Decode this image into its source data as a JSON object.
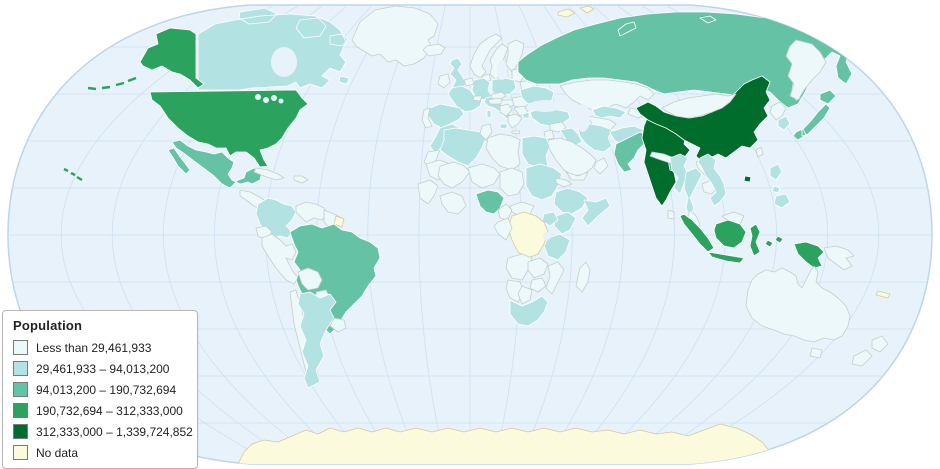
{
  "legend": {
    "title": "Population",
    "items": [
      {
        "label": "Less than 29,461,933",
        "class": "c0"
      },
      {
        "label": "29,461,933 – 94,013,200",
        "class": "c1"
      },
      {
        "label": "94,013,200 – 190,732,694",
        "class": "c2"
      },
      {
        "label": "190,732,694 – 312,333,000",
        "class": "c3"
      },
      {
        "label": "312,333,000 – 1,339,724,852",
        "class": "c4"
      },
      {
        "label": "No data",
        "class": "nodata"
      }
    ]
  },
  "map": {
    "projection": "robinson-world",
    "palette": {
      "c0": "#edf8fb",
      "c1": "#b2e2e2",
      "c2": "#66c2a4",
      "c3": "#2ca25f",
      "c4": "#006d2c",
      "nodata": "#fcfadc",
      "ocean": "#e8f2fa",
      "graticule": "#cde0f2",
      "oceanEdge": "#bdd5ea",
      "lake": "#e8f2fa"
    },
    "strokes": {
      "c0": "#c3cfcb",
      "c1": "#ffffff",
      "c2": "#ffffff",
      "c3": "#ffffff",
      "c4": "#ffffff",
      "nodata": "#d2cba0"
    },
    "countries": {
      "alaska": "c3",
      "aleutian-islands": "c3",
      "hawaii": "c3",
      "united-states": "c3",
      "canada": "c1",
      "greenland": "c0",
      "iceland": "c0",
      "mexico": "c2",
      "central-america": "c0",
      "cuba": "c0",
      "hispaniola": "c0",
      "colombia": "c1",
      "venezuela": "c0",
      "guyanas": "c0",
      "french-guiana": "nodata",
      "ecuador": "c0",
      "peru": "c0",
      "brazil": "c2",
      "bolivia": "c0",
      "paraguay": "c0",
      "chile": "c0",
      "argentina": "c1",
      "uruguay": "c0",
      "united-kingdom": "c1",
      "ireland": "c0",
      "norway": "c0",
      "sweden": "c0",
      "finland": "c0",
      "denmark": "c0",
      "baltic-states": "c0",
      "belarus": "c0",
      "poland": "c1",
      "germany": "c1",
      "netherlands": "c0",
      "france": "c1",
      "spain": "c1",
      "portugal": "c0",
      "italy": "c1",
      "switzerland": "c0",
      "czechia": "c0",
      "austria": "c0",
      "hungary": "c0",
      "romania": "c0",
      "serbia-balkans": "c0",
      "bulgaria": "c0",
      "greece": "c0",
      "ukraine": "c1",
      "turkey": "c1",
      "syria": "c0",
      "iraq": "c1",
      "jordan-israel": "c0",
      "saudi-arabia": "c0",
      "yemen": "c0",
      "oman": "c0",
      "iran": "c1",
      "afghanistan": "c1",
      "pakistan": "c2",
      "russia": "c2",
      "russia-far-east": "c0",
      "novaya-zemlya": "c2",
      "svalbard": "nodata",
      "kazakhstan": "c0",
      "uzbekistan": "c1",
      "turkmenistan": "c0",
      "kyrgyzstan": "c0",
      "morocco": "c1",
      "western-sahara": "c0",
      "algeria": "c1",
      "tunisia": "c0",
      "libya": "c0",
      "egypt": "c1",
      "mauritania": "c0",
      "mali": "c0",
      "niger": "c0",
      "chad": "c0",
      "sudan": "c1",
      "senegal-guinea": "c0",
      "ivory-coast-ghana": "c0",
      "nigeria": "c2",
      "cameroon": "c0",
      "central-african-republic": "c0",
      "eritrea": "c0",
      "ethiopia": "c1",
      "somalia": "c1",
      "kenya": "c1",
      "uganda": "c1",
      "dr-congo": "nodata",
      "congo-gabon": "c0",
      "tanzania": "c1",
      "angola": "c0",
      "zambia": "c0",
      "mozambique": "c0",
      "zimbabwe": "c0",
      "namibia": "c0",
      "botswana": "c0",
      "south-africa": "c1",
      "madagascar": "c0",
      "india": "c4",
      "bangladesh": "c2",
      "sri-lanka": "c0",
      "nepal": "c0",
      "china": "c4",
      "mongolia": "c0",
      "taiwan": "c0",
      "north-korea": "c0",
      "south-korea": "c1",
      "japan": "c2",
      "myanmar": "c1",
      "thailand": "c1",
      "laos": "c0",
      "cambodia": "c0",
      "vietnam": "c1",
      "malaysia": "c0",
      "malaysia-borneo": "c0",
      "philippines": "c1",
      "indonesia": "c3",
      "papua-new-guinea": "c0",
      "australia": "c0",
      "tasmania": "c0",
      "new-zealand": "c0",
      "new-caledonia": "nodata",
      "antarctica": "nodata"
    }
  }
}
